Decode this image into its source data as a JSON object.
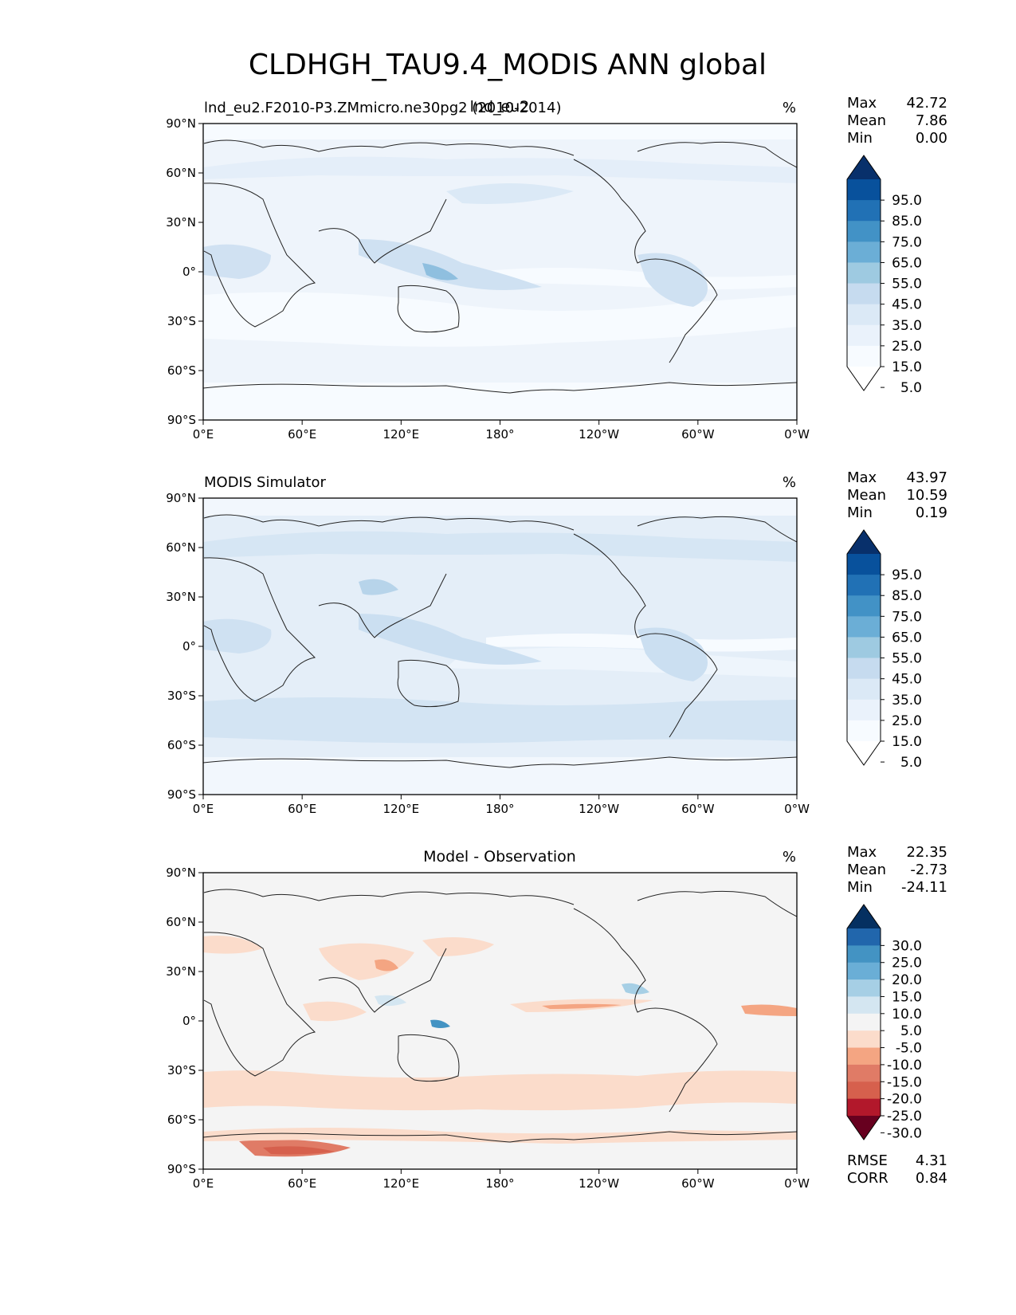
{
  "figure": {
    "title": "CLDHGH_TAU9.4_MODIS ANN global",
    "overlap_title": "lnd_eu2"
  },
  "lat_ticks": [
    "90°N",
    "60°N",
    "30°N",
    "0°",
    "30°S",
    "60°S",
    "90°S"
  ],
  "lon_ticks": [
    "0°E",
    "60°E",
    "120°E",
    "180°",
    "120°W",
    "60°W",
    "0°W"
  ],
  "stat_labels": {
    "max": "Max",
    "mean": "Mean",
    "min": "Min",
    "rmse": "RMSE",
    "corr": "CORR"
  },
  "panels": [
    {
      "id": "test",
      "left_title": "lnd_eu2.F2010-P3.ZMmicro.ne30pg2 (2010-2014)",
      "center_title": "",
      "units": "%",
      "stats": {
        "max": "42.72",
        "mean": "7.86",
        "min": "0.00"
      },
      "colorbar": {
        "extend": "both",
        "labels": [
          "95.0",
          "85.0",
          "75.0",
          "65.0",
          "55.0",
          "45.0",
          "35.0",
          "25.0",
          "15.0",
          "5.0"
        ],
        "colors": [
          "#08306b",
          "#08519c",
          "#2171b5",
          "#4292c6",
          "#6baed6",
          "#9ecae1",
          "#c6dbef",
          "#dbe9f6",
          "#eaf2fb",
          "#f7fbff",
          "#ffffff"
        ]
      },
      "background": "#eef4fb"
    },
    {
      "id": "ref",
      "left_title": "MODIS Simulator",
      "center_title": "",
      "units": "%",
      "stats": {
        "max": "43.97",
        "mean": "10.59",
        "min": "0.19"
      },
      "colorbar": {
        "extend": "both",
        "labels": [
          "95.0",
          "85.0",
          "75.0",
          "65.0",
          "55.0",
          "45.0",
          "35.0",
          "25.0",
          "15.0",
          "5.0"
        ],
        "colors": [
          "#08306b",
          "#08519c",
          "#2171b5",
          "#4292c6",
          "#6baed6",
          "#9ecae1",
          "#c6dbef",
          "#dbe9f6",
          "#eaf2fb",
          "#f7fbff",
          "#ffffff"
        ]
      },
      "background": "#e4eef8"
    },
    {
      "id": "diff",
      "left_title": "",
      "center_title": "Model - Observation",
      "units": "%",
      "stats": {
        "max": "22.35",
        "mean": "-2.73",
        "min": "-24.11",
        "rmse": "4.31",
        "corr": "0.84"
      },
      "colorbar": {
        "extend": "both",
        "labels": [
          "30.0",
          "25.0",
          "20.0",
          "15.0",
          "10.0",
          "5.0",
          "-5.0",
          "-10.0",
          "-15.0",
          "-20.0",
          "-25.0",
          "-30.0"
        ],
        "colors": [
          "#053061",
          "#2166ac",
          "#4393c3",
          "#6aaed6",
          "#a6cfe5",
          "#d4e6f1",
          "#f4f4f4",
          "#fbdccb",
          "#f4a582",
          "#e07b66",
          "#d6604d",
          "#b2182b",
          "#67001f"
        ]
      },
      "background": "#f4f4f4"
    }
  ]
}
